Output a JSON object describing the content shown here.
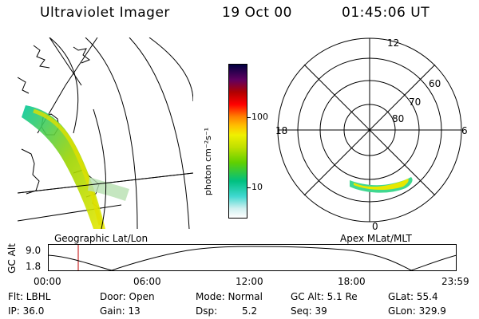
{
  "header": {
    "title": "Ultraviolet Imager",
    "date": "19 Oct 00",
    "time": "01:45:06 UT"
  },
  "colorbar": {
    "unit_label": "photon cm⁻²s⁻¹",
    "ticks": [
      "100",
      "10"
    ]
  },
  "polar": {
    "lat_labels": [
      "60",
      "70",
      "80"
    ],
    "mlt_labels": [
      "12",
      "18",
      "6",
      "0"
    ]
  },
  "panels": {
    "left_label": "Geographic Lat/Lon",
    "right_label": "Apex MLat/MLT"
  },
  "altitude_plot": {
    "ylabel": "GC Alt",
    "yticks": [
      "9.0",
      "1.8"
    ],
    "xticks": [
      "00:00",
      "06:00",
      "12:00",
      "18:00",
      "23:59"
    ]
  },
  "info": {
    "row1": {
      "flt": "Flt: LBHL",
      "door": "Door: Open",
      "mode": "Mode: Normal",
      "gc_alt": "GC Alt: 5.1 Re",
      "glat": "GLat: 55.4"
    },
    "row2": {
      "ip": "IP: 36.0",
      "gain": "Gain: 13",
      "dsp_label": "Dsp:",
      "dsp_value": "5.2",
      "seq": "Seq: 39",
      "glon": "GLon: 329.9"
    }
  }
}
